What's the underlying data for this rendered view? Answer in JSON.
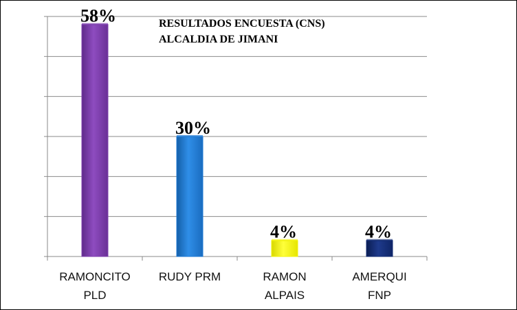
{
  "chart_data": {
    "type": "bar",
    "title_lines": [
      "RESULTADOS ENCUESTA (CNS)",
      "ALCALDIA DE JIMANI"
    ],
    "categories": [
      [
        "RAMONCITO",
        "PLD"
      ],
      [
        "RUDY PRM"
      ],
      [
        "RAMON",
        "ALPAIS"
      ],
      [
        "AMERQUI",
        "FNP"
      ]
    ],
    "values": [
      58,
      30,
      4,
      4
    ],
    "data_labels": [
      "58%",
      "30%",
      "4%",
      "4%"
    ],
    "colors": [
      "#7e3fae",
      "#1f7ad4",
      "#f2f20a",
      "#132c73"
    ],
    "ylim": [
      0,
      60
    ],
    "grid": true,
    "legend": "none"
  }
}
